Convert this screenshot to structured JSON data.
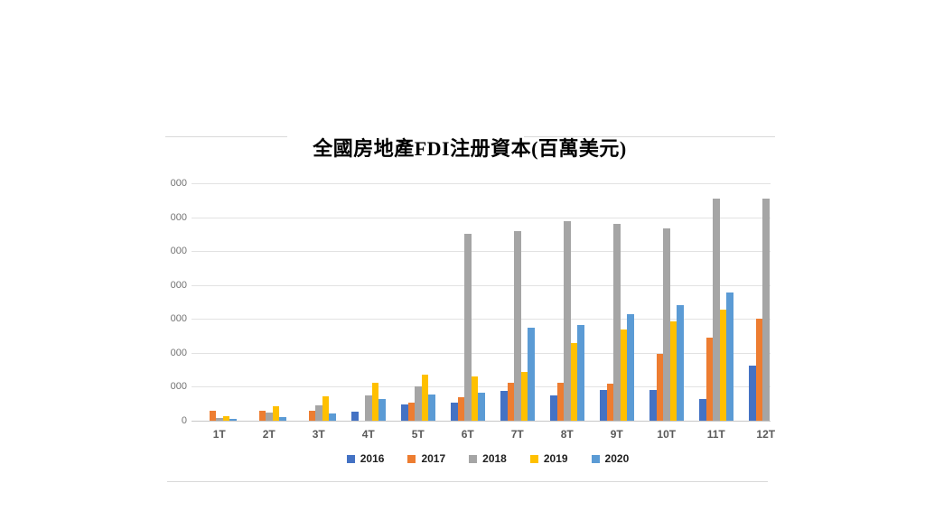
{
  "chart_title": "全國房地產FDI注册資本(百萬美元)",
  "chart_data": {
    "type": "bar",
    "title": "全國房地產FDI注册資本(百萬美元)",
    "categories": [
      "1T",
      "2T",
      "3T",
      "4T",
      "5T",
      "6T",
      "7T",
      "8T",
      "9T",
      "10T",
      "11T",
      "12T"
    ],
    "series": [
      {
        "name": "2016",
        "color": "#4472C4",
        "values": [
          0,
          0,
          0,
          270,
          490,
          520,
          880,
          750,
          910,
          900,
          650,
          1620
        ]
      },
      {
        "name": "2017",
        "color": "#ED7D31",
        "values": [
          290,
          300,
          300,
          0,
          530,
          680,
          1110,
          1110,
          1090,
          1980,
          2440,
          3010
        ]
      },
      {
        "name": "2018",
        "color": "#A5A5A5",
        "values": [
          70,
          240,
          460,
          750,
          1020,
          5500,
          5590,
          5880,
          5810,
          5660,
          6540,
          6560
        ]
      },
      {
        "name": "2019",
        "color": "#FFC000",
        "values": [
          140,
          430,
          720,
          1110,
          1350,
          1310,
          1440,
          2290,
          2700,
          2930,
          3280,
          null
        ]
      },
      {
        "name": "2020",
        "color": "#5B9BD5",
        "values": [
          45,
          100,
          215,
          650,
          760,
          830,
          2750,
          2820,
          3130,
          3400,
          3770,
          null
        ]
      }
    ],
    "ylim": [
      0,
      7000
    ],
    "gridline_step": 1000,
    "grid": true,
    "legend_position": "bottom",
    "y_tick_labels_visible": [
      "000",
      "000",
      "000",
      "000",
      "000",
      "000",
      "000",
      "0"
    ],
    "note": "12T 2019/2020 bars clipped at right edge of image"
  }
}
